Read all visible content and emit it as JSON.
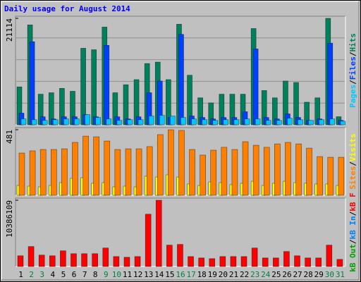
{
  "chart_data": [
    {
      "type": "bar",
      "title": "Daily usage for August 2014",
      "separator": "/",
      "ylim": [
        0,
        21114
      ],
      "yticks": [
        21114
      ],
      "series": [
        {
          "name": "Hits",
          "color": "#00805c",
          "values": [
            7520,
            19810,
            6070,
            6360,
            7230,
            6650,
            15180,
            14890,
            19380,
            6360,
            7950,
            8960,
            12150,
            12440,
            8960,
            19950,
            9830,
            5350,
            4340,
            6070,
            6070,
            6070,
            19090,
            6800,
            5350,
            8680,
            8390,
            4480,
            5350,
            21114,
            1600
          ]
        },
        {
          "name": "Files",
          "color": "#0040ff",
          "values": [
            2310,
            16480,
            1590,
            1160,
            1590,
            1590,
            2020,
            1590,
            15760,
            1590,
            1160,
            1590,
            6360,
            8680,
            1450,
            17930,
            1740,
            1450,
            1160,
            1450,
            1450,
            2600,
            15040,
            1450,
            1160,
            2170,
            1450,
            870,
            1160,
            16200,
            870
          ]
        },
        {
          "name": "Pages",
          "color": "#00c8ff",
          "values": [
            1160,
            1010,
            870,
            1010,
            1160,
            1160,
            2020,
            1450,
            1160,
            870,
            1010,
            1010,
            1740,
            1880,
            1740,
            1450,
            1160,
            1010,
            870,
            1010,
            1010,
            1160,
            1160,
            870,
            870,
            1300,
            1010,
            870,
            1010,
            1160,
            720
          ]
        }
      ]
    },
    {
      "type": "bar",
      "separator": "/",
      "ylim": [
        0,
        481
      ],
      "yticks": [
        481
      ],
      "series": [
        {
          "name": "Visits",
          "color": "#ffff00",
          "values": [
            72,
            67,
            62,
            72,
            93,
            124,
            129,
            88,
            93,
            62,
            67,
            62,
            140,
            134,
            150,
            134,
            83,
            72,
            98,
            93,
            78,
            88,
            103,
            72,
            88,
            103,
            93,
            88,
            83,
            83,
            72
          ]
        },
        {
          "name": "Sites",
          "color": "#ff8000",
          "values": [
            310,
            326,
            336,
            336,
            341,
            388,
            434,
            429,
            398,
            336,
            341,
            341,
            357,
            445,
            481,
            476,
            336,
            295,
            331,
            352,
            336,
            393,
            367,
            352,
            377,
            388,
            377,
            346,
            284,
            279,
            279
          ]
        }
      ]
    },
    {
      "type": "bar",
      "separator": "/",
      "ylim": [
        0,
        10386109
      ],
      "yticks": [
        10386109
      ],
      "categories": [
        "1",
        "2",
        "3",
        "4",
        "5",
        "6",
        "7",
        "8",
        "9",
        "10",
        "11",
        "12",
        "13",
        "14",
        "15",
        "16",
        "17",
        "18",
        "19",
        "20",
        "21",
        "22",
        "23",
        "24",
        "25",
        "26",
        "27",
        "28",
        "29",
        "30",
        "31"
      ],
      "category_colors": [
        "#000000",
        "#008040",
        "#008040",
        "#000000",
        "#000000",
        "#000000",
        "#000000",
        "#000000",
        "#008040",
        "#008040",
        "#000000",
        "#000000",
        "#000000",
        "#000000",
        "#000000",
        "#008040",
        "#008040",
        "#000000",
        "#000000",
        "#000000",
        "#000000",
        "#000000",
        "#008040",
        "#008040",
        "#000000",
        "#000000",
        "#000000",
        "#000000",
        "#000000",
        "#008040",
        "#008040"
      ],
      "series": [
        {
          "name": "kB F",
          "color": "#ff0000",
          "values": [
            1680000,
            3130000,
            1790000,
            1680000,
            2460000,
            2010000,
            2010000,
            2010000,
            2900000,
            1560000,
            1450000,
            1560000,
            8200000,
            10386109,
            3350000,
            3460000,
            1560000,
            1340000,
            1230000,
            1560000,
            1560000,
            1560000,
            2900000,
            1340000,
            1340000,
            2350000,
            1680000,
            1340000,
            1340000,
            3350000,
            1120000
          ]
        },
        {
          "name": "kB In",
          "color": "#0080ff"
        },
        {
          "name": "kB Out",
          "color": "#00a000"
        }
      ]
    }
  ]
}
